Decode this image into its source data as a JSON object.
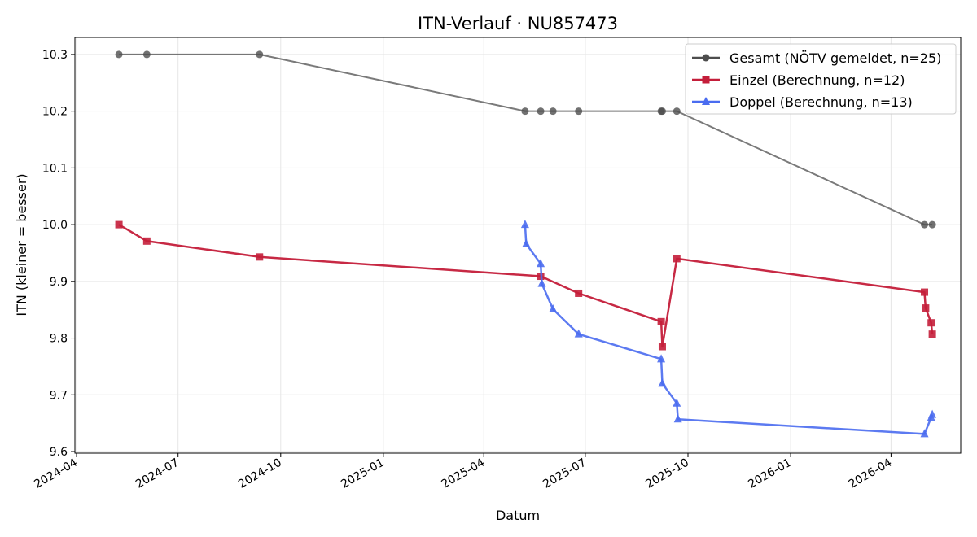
{
  "chart_data": {
    "type": "line",
    "title": "ITN-Verlauf · NU857473",
    "xlabel": "Datum",
    "ylabel": "ITN  (kleiner = besser)",
    "x_range": [
      "2024-04-01",
      "2026-06-01"
    ],
    "ylim": [
      9.6,
      10.33
    ],
    "x_ticks": [
      "2024-04",
      "2024-07",
      "2024-10",
      "2025-01",
      "2025-04",
      "2025-07",
      "2025-10",
      "2026-01",
      "2026-04"
    ],
    "y_ticks": [
      9.6,
      9.7,
      9.8,
      9.9,
      10.0,
      10.1,
      10.2,
      10.3
    ],
    "y_tick_labels": [
      "9.6",
      "9.7",
      "9.8",
      "9.9",
      "10.0",
      "10.1",
      "10.2",
      "10.3"
    ],
    "grid": true,
    "legend_position": "top-right",
    "series": [
      {
        "name": "Gesamt (NÖTV gemeldet, n=25)",
        "color": "#4d4d4d",
        "marker": "circle",
        "points": [
          [
            "2024-05-09",
            10.3
          ],
          [
            "2024-06-03",
            10.3
          ],
          [
            "2024-09-12",
            10.3
          ],
          [
            "2025-05-08",
            10.2
          ],
          [
            "2025-05-22",
            10.2
          ],
          [
            "2025-06-02",
            10.2
          ],
          [
            "2025-06-25",
            10.2
          ],
          [
            "2025-09-07",
            10.2
          ],
          [
            "2025-09-08",
            10.2
          ],
          [
            "2025-09-21",
            10.2
          ],
          [
            "2026-05-01",
            10.0
          ],
          [
            "2026-05-08",
            10.0
          ]
        ]
      },
      {
        "name": "Einzel (Berechnung, n=12)",
        "color": "#c41e3a",
        "marker": "square",
        "points": [
          [
            "2024-05-09",
            10.0
          ],
          [
            "2024-06-03",
            9.971
          ],
          [
            "2024-09-12",
            9.943
          ],
          [
            "2025-05-22",
            9.909
          ],
          [
            "2025-06-25",
            9.879
          ],
          [
            "2025-09-07",
            9.829
          ],
          [
            "2025-09-08",
            9.785
          ],
          [
            "2025-09-21",
            9.94
          ],
          [
            "2026-05-01",
            9.881
          ],
          [
            "2026-05-02",
            9.853
          ],
          [
            "2026-05-07",
            9.827
          ],
          [
            "2026-05-08",
            9.807
          ]
        ]
      },
      {
        "name": "Doppel (Berechnung, n=13)",
        "color": "#4a6cf0",
        "marker": "triangle",
        "points": [
          [
            "2025-05-08",
            10.0
          ],
          [
            "2025-05-09",
            9.966
          ],
          [
            "2025-05-22",
            9.931
          ],
          [
            "2025-05-23",
            9.896
          ],
          [
            "2025-06-02",
            9.851
          ],
          [
            "2025-06-25",
            9.807
          ],
          [
            "2025-09-07",
            9.763
          ],
          [
            "2025-09-08",
            9.72
          ],
          [
            "2025-09-21",
            9.685
          ],
          [
            "2025-09-22",
            9.657
          ],
          [
            "2026-05-01",
            9.631
          ],
          [
            "2026-05-07",
            9.66
          ],
          [
            "2026-05-08",
            9.665
          ]
        ]
      }
    ]
  }
}
